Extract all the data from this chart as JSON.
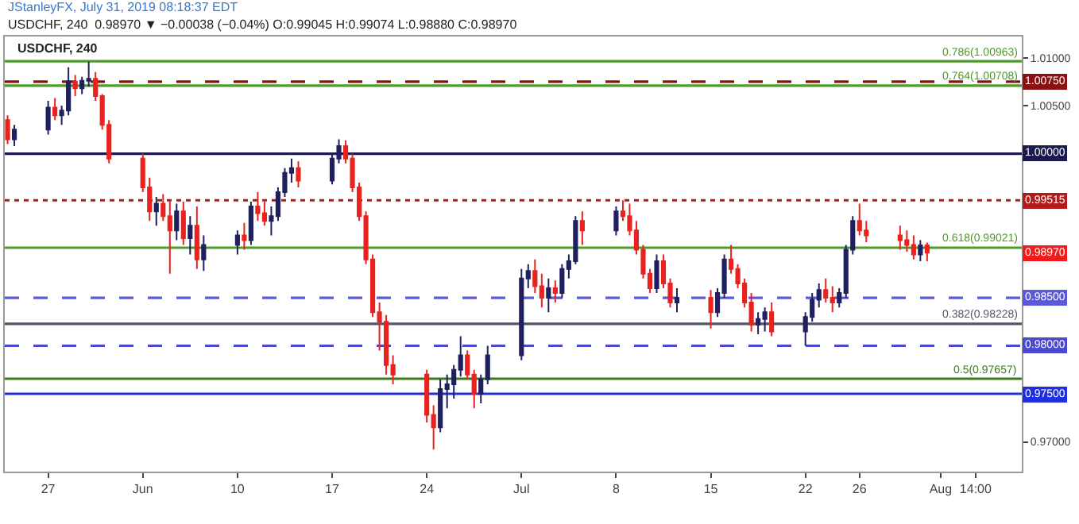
{
  "chart_data": {
    "type": "candlestick",
    "title": "JStanleyFX, July 31, 2019 08:18:37 EDT",
    "subtitle": "USDCHF, 240  0.98970 ▼ −0.00038 (−0.04%) O:0.99045 H:0.99074 L:0.98880 C:0.98970",
    "x": [
      "2019-05-24T00:00",
      "2019-05-24T12:00",
      "2019-05-27T00:00",
      "2019-05-27T12:00",
      "2019-05-28T00:00",
      "2019-05-28T12:00",
      "2019-05-29T00:00",
      "2019-05-29T12:00",
      "2019-05-30T00:00",
      "2019-05-30T12:00",
      "2019-05-31T00:00",
      "2019-05-31T12:00",
      "2019-06-03T00:00",
      "2019-06-03T12:00",
      "2019-06-04T00:00",
      "2019-06-04T12:00",
      "2019-06-05T00:00",
      "2019-06-05T12:00",
      "2019-06-06T00:00",
      "2019-06-06T12:00",
      "2019-06-07T00:00",
      "2019-06-07T12:00",
      "2019-06-10T00:00",
      "2019-06-10T12:00",
      "2019-06-11T00:00",
      "2019-06-11T12:00",
      "2019-06-12T00:00",
      "2019-06-12T12:00",
      "2019-06-13T00:00",
      "2019-06-13T12:00",
      "2019-06-14T00:00",
      "2019-06-14T12:00",
      "2019-06-17T00:00",
      "2019-06-17T12:00",
      "2019-06-18T00:00",
      "2019-06-18T12:00",
      "2019-06-19T00:00",
      "2019-06-19T12:00",
      "2019-06-20T00:00",
      "2019-06-20T12:00",
      "2019-06-21T00:00",
      "2019-06-21T12:00",
      "2019-06-24T00:00",
      "2019-06-24T12:00",
      "2019-06-25T00:00",
      "2019-06-25T12:00",
      "2019-06-26T00:00",
      "2019-06-26T12:00",
      "2019-06-27T00:00",
      "2019-06-27T12:00",
      "2019-06-28T00:00",
      "2019-06-28T12:00",
      "2019-07-01T00:00",
      "2019-07-01T12:00",
      "2019-07-02T00:00",
      "2019-07-02T12:00",
      "2019-07-03T00:00",
      "2019-07-03T12:00",
      "2019-07-04T00:00",
      "2019-07-04T12:00",
      "2019-07-05T00:00",
      "2019-07-05T12:00",
      "2019-07-08T00:00",
      "2019-07-08T12:00",
      "2019-07-09T00:00",
      "2019-07-09T12:00",
      "2019-07-10T00:00",
      "2019-07-10T12:00",
      "2019-07-11T00:00",
      "2019-07-11T12:00",
      "2019-07-12T00:00",
      "2019-07-12T12:00",
      "2019-07-15T00:00",
      "2019-07-15T12:00",
      "2019-07-16T00:00",
      "2019-07-16T12:00",
      "2019-07-17T00:00",
      "2019-07-17T12:00",
      "2019-07-18T00:00",
      "2019-07-18T12:00",
      "2019-07-19T00:00",
      "2019-07-19T12:00",
      "2019-07-22T00:00",
      "2019-07-22T12:00",
      "2019-07-23T00:00",
      "2019-07-23T12:00",
      "2019-07-24T00:00",
      "2019-07-24T12:00",
      "2019-07-25T00:00",
      "2019-07-25T12:00",
      "2019-07-26T00:00",
      "2019-07-26T12:00",
      "2019-07-29T00:00",
      "2019-07-29T12:00",
      "2019-07-30T00:00",
      "2019-07-30T12:00",
      "2019-07-31T00:00"
    ],
    "ohlc": [
      [
        1.0035,
        1.004,
        1.001,
        1.0015
      ],
      [
        1.0015,
        1.003,
        1.0008,
        1.0025
      ],
      [
        1.0025,
        1.0055,
        1.002,
        1.0048
      ],
      [
        1.0048,
        1.0058,
        1.0035,
        1.004
      ],
      [
        1.004,
        1.005,
        1.003,
        1.0045
      ],
      [
        1.0045,
        1.009,
        1.004,
        1.0075
      ],
      [
        1.0075,
        1.0082,
        1.006,
        1.0068
      ],
      [
        1.0068,
        1.008,
        1.0062,
        1.0076
      ],
      [
        1.0076,
        1.0096,
        1.007,
        1.0078
      ],
      [
        1.0078,
        1.0085,
        1.0055,
        1.006
      ],
      [
        1.006,
        1.0062,
        1.0025,
        1.003
      ],
      [
        1.003,
        1.0035,
        0.999,
        0.9995
      ],
      [
        0.9995,
        1.0,
        0.996,
        0.9965
      ],
      [
        0.9965,
        0.9975,
        0.993,
        0.994
      ],
      [
        0.994,
        0.9955,
        0.9925,
        0.9948
      ],
      [
        0.9948,
        0.9958,
        0.993,
        0.9935
      ],
      [
        0.9935,
        0.995,
        0.9875,
        0.992
      ],
      [
        0.992,
        0.9948,
        0.991,
        0.994
      ],
      [
        0.994,
        0.995,
        0.9905,
        0.9912
      ],
      [
        0.9912,
        0.9935,
        0.9895,
        0.9925
      ],
      [
        0.9925,
        0.9945,
        0.988,
        0.989
      ],
      [
        0.989,
        0.9915,
        0.9878,
        0.9905
      ],
      [
        0.9905,
        0.992,
        0.9895,
        0.9915
      ],
      [
        0.9915,
        0.9928,
        0.99,
        0.991
      ],
      [
        0.991,
        0.995,
        0.9905,
        0.9945
      ],
      [
        0.9945,
        0.996,
        0.993,
        0.9938
      ],
      [
        0.9938,
        0.995,
        0.9925,
        0.993
      ],
      [
        0.993,
        0.9945,
        0.9915,
        0.9935
      ],
      [
        0.9935,
        0.9965,
        0.993,
        0.996
      ],
      [
        0.996,
        0.9985,
        0.9955,
        0.998
      ],
      [
        0.998,
        0.9995,
        0.997,
        0.9985
      ],
      [
        0.9985,
        0.9992,
        0.9965,
        0.9972
      ],
      [
        0.9972,
        1.0,
        0.9968,
        0.9995
      ],
      [
        0.9995,
        1.0015,
        0.999,
        1.0008
      ],
      [
        1.0008,
        1.0014,
        0.999,
        0.9995
      ],
      [
        0.9995,
        1.0,
        0.996,
        0.9965
      ],
      [
        0.9965,
        0.997,
        0.993,
        0.9935
      ],
      [
        0.9935,
        0.994,
        0.9885,
        0.989
      ],
      [
        0.989,
        0.9895,
        0.983,
        0.9835
      ],
      [
        0.9835,
        0.9845,
        0.9795,
        0.9825
      ],
      [
        0.9825,
        0.9832,
        0.977,
        0.978
      ],
      [
        0.978,
        0.979,
        0.976,
        0.977
      ],
      [
        0.977,
        0.9775,
        0.972,
        0.9728
      ],
      [
        0.9728,
        0.9738,
        0.9692,
        0.9715
      ],
      [
        0.9715,
        0.9765,
        0.971,
        0.9755
      ],
      [
        0.9755,
        0.977,
        0.9735,
        0.976
      ],
      [
        0.976,
        0.978,
        0.9745,
        0.9775
      ],
      [
        0.9775,
        0.981,
        0.9768,
        0.979
      ],
      [
        0.979,
        0.9795,
        0.9765,
        0.977
      ],
      [
        0.977,
        0.9775,
        0.9735,
        0.975
      ],
      [
        0.975,
        0.977,
        0.974,
        0.9765
      ],
      [
        0.9765,
        0.98,
        0.976,
        0.979
      ],
      [
        0.979,
        0.988,
        0.9785,
        0.987
      ],
      [
        0.987,
        0.9885,
        0.986,
        0.9878
      ],
      [
        0.9878,
        0.989,
        0.9855,
        0.9862
      ],
      [
        0.9862,
        0.9875,
        0.984,
        0.985
      ],
      [
        0.985,
        0.987,
        0.9835,
        0.986
      ],
      [
        0.986,
        0.9868,
        0.9845,
        0.9855
      ],
      [
        0.9855,
        0.9885,
        0.985,
        0.988
      ],
      [
        0.988,
        0.9895,
        0.987,
        0.9888
      ],
      [
        0.9888,
        0.9935,
        0.9885,
        0.993
      ],
      [
        0.993,
        0.994,
        0.9905,
        0.992
      ],
      [
        0.992,
        0.9945,
        0.9915,
        0.994
      ],
      [
        0.994,
        0.99515,
        0.993,
        0.9935
      ],
      [
        0.9935,
        0.9948,
        0.9915,
        0.992
      ],
      [
        0.992,
        0.993,
        0.9895,
        0.99
      ],
      [
        0.99,
        0.9905,
        0.987,
        0.9875
      ],
      [
        0.9875,
        0.988,
        0.9855,
        0.986
      ],
      [
        0.986,
        0.9895,
        0.9855,
        0.9888
      ],
      [
        0.9888,
        0.9895,
        0.986,
        0.9865
      ],
      [
        0.9865,
        0.987,
        0.984,
        0.9845
      ],
      [
        0.9845,
        0.986,
        0.9835,
        0.985
      ],
      [
        0.985,
        0.9858,
        0.9818,
        0.9835
      ],
      [
        0.9835,
        0.986,
        0.983,
        0.9855
      ],
      [
        0.9855,
        0.9895,
        0.985,
        0.989
      ],
      [
        0.989,
        0.9905,
        0.9875,
        0.988
      ],
      [
        0.988,
        0.9885,
        0.986,
        0.9865
      ],
      [
        0.9865,
        0.987,
        0.984,
        0.9845
      ],
      [
        0.9845,
        0.9855,
        0.9815,
        0.9822
      ],
      [
        0.9822,
        0.9835,
        0.9812,
        0.9828
      ],
      [
        0.9828,
        0.984,
        0.9815,
        0.9835
      ],
      [
        0.9835,
        0.9845,
        0.981,
        0.9815
      ],
      [
        0.9815,
        0.9835,
        0.98,
        0.983
      ],
      [
        0.983,
        0.9855,
        0.9825,
        0.9848
      ],
      [
        0.9848,
        0.9865,
        0.984,
        0.9858
      ],
      [
        0.9858,
        0.987,
        0.9845,
        0.985
      ],
      [
        0.985,
        0.9862,
        0.9835,
        0.9845
      ],
      [
        0.9845,
        0.986,
        0.984,
        0.9855
      ],
      [
        0.9855,
        0.9905,
        0.985,
        0.99
      ],
      [
        0.99,
        0.9935,
        0.9895,
        0.993
      ],
      [
        0.993,
        0.9948,
        0.9915,
        0.992
      ],
      [
        0.992,
        0.993,
        0.9908,
        0.9915
      ],
      [
        0.9915,
        0.9925,
        0.99,
        0.991
      ],
      [
        0.991,
        0.992,
        0.9898,
        0.9905
      ],
      [
        0.9905,
        0.9915,
        0.989,
        0.9895
      ],
      [
        0.9895,
        0.991,
        0.9888,
        0.99045
      ],
      [
        0.99045,
        0.99074,
        0.9888,
        0.9897
      ]
    ],
    "colors": [
      "#e8231f",
      "#1f2060",
      "#1f2060",
      "#e8231f",
      "#1f2060",
      "#1f2060",
      "#e8231f",
      "#1f2060",
      "#1f2060",
      "#e8231f",
      "#e8231f",
      "#e8231f",
      "#e8231f",
      "#e8231f",
      "#1f2060",
      "#e8231f",
      "#e8231f",
      "#1f2060",
      "#e8231f",
      "#1f2060",
      "#e8231f",
      "#1f2060",
      "#1f2060",
      "#e8231f",
      "#1f2060",
      "#e8231f",
      "#e8231f",
      "#1f2060",
      "#1f2060",
      "#1f2060",
      "#1f2060",
      "#e8231f",
      "#1f2060",
      "#1f2060",
      "#e8231f",
      "#e8231f",
      "#e8231f",
      "#e8231f",
      "#e8231f",
      "#e8231f",
      "#e8231f",
      "#e8231f",
      "#e8231f",
      "#e8231f",
      "#1f2060",
      "#1f2060",
      "#1f2060",
      "#1f2060",
      "#e8231f",
      "#e8231f",
      "#1f2060",
      "#1f2060",
      "#1f2060",
      "#1f2060",
      "#e8231f",
      "#e8231f",
      "#1f2060",
      "#e8231f",
      "#1f2060",
      "#1f2060",
      "#1f2060",
      "#e8231f",
      "#1f2060",
      "#e8231f",
      "#e8231f",
      "#e8231f",
      "#e8231f",
      "#e8231f",
      "#1f2060",
      "#e8231f",
      "#e8231f",
      "#1f2060",
      "#e8231f",
      "#1f2060",
      "#1f2060",
      "#e8231f",
      "#e8231f",
      "#e8231f",
      "#e8231f",
      "#1f2060",
      "#1f2060",
      "#e8231f",
      "#1f2060",
      "#1f2060",
      "#1f2060",
      "#e8231f",
      "#e8231f",
      "#1f2060",
      "#1f2060",
      "#1f2060",
      "#e8231f",
      "#e8231f",
      "#e8231f",
      "#e8231f",
      "#e8231f",
      "#1f2060",
      "#e8231f"
    ],
    "xlim": [
      "2019-05-23T19:00",
      "2019-08-07T00:00"
    ],
    "xticks": [
      {
        "value": "2019-05-27",
        "label": "27"
      },
      {
        "value": "2019-06-03",
        "label": "Jun"
      },
      {
        "value": "2019-06-10",
        "label": "10"
      },
      {
        "value": "2019-06-17",
        "label": "17"
      },
      {
        "value": "2019-06-24",
        "label": "24"
      },
      {
        "value": "2019-07-01",
        "label": "Jul"
      },
      {
        "value": "2019-07-08",
        "label": "8"
      },
      {
        "value": "2019-07-15",
        "label": "15"
      },
      {
        "value": "2019-07-22",
        "label": "22"
      },
      {
        "value": "2019-07-26",
        "label": "26"
      },
      {
        "value": "2019-08-01",
        "label": "Aug"
      },
      {
        "value": "2019-08-03T14:00",
        "label": "14:00"
      }
    ],
    "ylim": [
      0.9669,
      1.0122
    ],
    "yticks": [
      {
        "value": 0.97,
        "label": "0.97000"
      },
      {
        "value": 1.005,
        "label": "1.00500"
      },
      {
        "value": 1.01,
        "label": "1.01000"
      }
    ],
    "grid": false,
    "ref_lines": [
      {
        "axis": "y",
        "value": 1.00963,
        "color": "#4e9a2a",
        "line_style": "solid"
      },
      {
        "axis": "y",
        "value": 1.0075,
        "label": "1.00750",
        "color": "#8b1010",
        "line_style": "dashed"
      },
      {
        "axis": "y",
        "value": 1.00708,
        "color": "#4e9a2a",
        "line_style": "solid"
      },
      {
        "axis": "y",
        "value": 1.0,
        "label": "1.00000",
        "color": "#1a1a4e",
        "line_style": "solid"
      },
      {
        "axis": "y",
        "value": 0.99515,
        "label": "0.99515",
        "color": "#b01c1c",
        "line_style": "dotted"
      },
      {
        "axis": "y",
        "value": 0.99021,
        "color": "#4e9a2a",
        "line_style": "solid"
      },
      {
        "axis": "y",
        "value": 0.985,
        "label": "0.98500",
        "color": "#5a5ad8",
        "line_style": "dashed"
      },
      {
        "axis": "y",
        "value": 0.98228,
        "color": "#555566",
        "line_style": "solid"
      },
      {
        "axis": "y",
        "value": 0.98,
        "label": "0.98000",
        "color": "#4a4ad0",
        "line_style": "dashed"
      },
      {
        "axis": "y",
        "value": 0.97657,
        "color": "#3a7a1a",
        "line_style": "solid"
      },
      {
        "axis": "y",
        "value": 0.975,
        "label": "0.97500",
        "color": "#1f2fe0",
        "line_style": "solid"
      }
    ],
    "annotations": [
      "USDCHF, 240",
      {
        "text": "0.786(1.00963)",
        "x": "2019-08-06T20:00",
        "y": 1.00963
      },
      {
        "text": "0.764(1.00708)",
        "x": "2019-08-06T20:00",
        "y": 1.00708
      },
      {
        "text": "0.618(0.99021)",
        "x": "2019-08-06T20:00",
        "y": 0.99021
      },
      {
        "text": "0.382(0.98228)",
        "x": "2019-08-06T20:00",
        "y": 0.98228
      },
      {
        "text": "0.5(0.97657)",
        "x": "2019-08-06T20:00",
        "y": 0.97657
      },
      "0.98970"
    ]
  }
}
